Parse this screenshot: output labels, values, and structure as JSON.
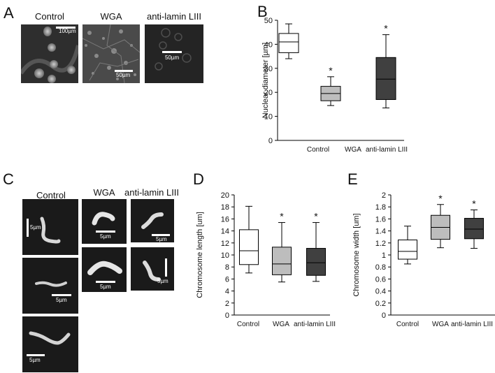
{
  "panels": {
    "A": {
      "letter": "A",
      "labels": [
        "Control",
        "WGA",
        "anti-lamin LIII"
      ],
      "scales": [
        "100µm",
        "50µm",
        "50µm"
      ]
    },
    "B": {
      "letter": "B"
    },
    "C": {
      "letter": "C",
      "labels": [
        "Control",
        "WGA",
        "anti-lamin LIII"
      ],
      "scales": [
        "5µm",
        "5µm",
        "5µm",
        "5µm",
        "5µm",
        "5µm",
        "5µm"
      ]
    },
    "D": {
      "letter": "D"
    },
    "E": {
      "letter": "E"
    }
  },
  "chart_data": [
    {
      "id": "B",
      "type": "boxplot",
      "ylabel": "Nuclear diameter [µm]",
      "ylim": [
        0,
        50
      ],
      "yticks": [
        0,
        10,
        20,
        30,
        40,
        50
      ],
      "categories": [
        "Control",
        "WGA",
        "anti-lamin LIII"
      ],
      "boxes": [
        {
          "min": 34,
          "q1": 36.5,
          "median": 41,
          "q3": 44.5,
          "max": 48.5,
          "fill": "#ffffff",
          "mark": ""
        },
        {
          "min": 14.5,
          "q1": 16.5,
          "median": 19.5,
          "q3": 22.5,
          "max": 26.5,
          "fill": "#bdbdbd",
          "mark": "*"
        },
        {
          "min": 13.5,
          "q1": 17,
          "median": 25.5,
          "q3": 34.5,
          "max": 44,
          "fill": "#404040",
          "mark": "*"
        }
      ]
    },
    {
      "id": "D",
      "type": "boxplot",
      "ylabel": "Chromosome length [um]",
      "ylim": [
        0,
        20
      ],
      "yticks": [
        0,
        2,
        4,
        6,
        8,
        10,
        12,
        14,
        16,
        18,
        20
      ],
      "categories": [
        "Control",
        "WGA",
        "anti-lamin LIII"
      ],
      "boxes": [
        {
          "min": 7,
          "q1": 8.4,
          "median": 10.7,
          "q3": 14.2,
          "max": 18.1,
          "fill": "#ffffff",
          "mark": ""
        },
        {
          "min": 5.5,
          "q1": 6.7,
          "median": 8.5,
          "q3": 11.3,
          "max": 15.4,
          "fill": "#bdbdbd",
          "mark": "*"
        },
        {
          "min": 5.6,
          "q1": 6.6,
          "median": 8.7,
          "q3": 11.1,
          "max": 15.4,
          "fill": "#404040",
          "mark": "*"
        }
      ]
    },
    {
      "id": "E",
      "type": "boxplot",
      "ylabel": "Chromosome width [um]",
      "ylim": [
        0,
        2
      ],
      "yticks": [
        0,
        0.2,
        0.4,
        0.6,
        0.8,
        1,
        1.2,
        1.4,
        1.6,
        1.8,
        2
      ],
      "categories": [
        "Control",
        "WGA",
        "anti-lamin LIII"
      ],
      "boxes": [
        {
          "min": 0.85,
          "q1": 0.93,
          "median": 1.06,
          "q3": 1.25,
          "max": 1.48,
          "fill": "#ffffff",
          "mark": ""
        },
        {
          "min": 1.12,
          "q1": 1.26,
          "median": 1.46,
          "q3": 1.66,
          "max": 1.84,
          "fill": "#bdbdbd",
          "mark": "*"
        },
        {
          "min": 1.11,
          "q1": 1.27,
          "median": 1.43,
          "q3": 1.61,
          "max": 1.75,
          "fill": "#404040",
          "mark": "*"
        }
      ]
    }
  ]
}
